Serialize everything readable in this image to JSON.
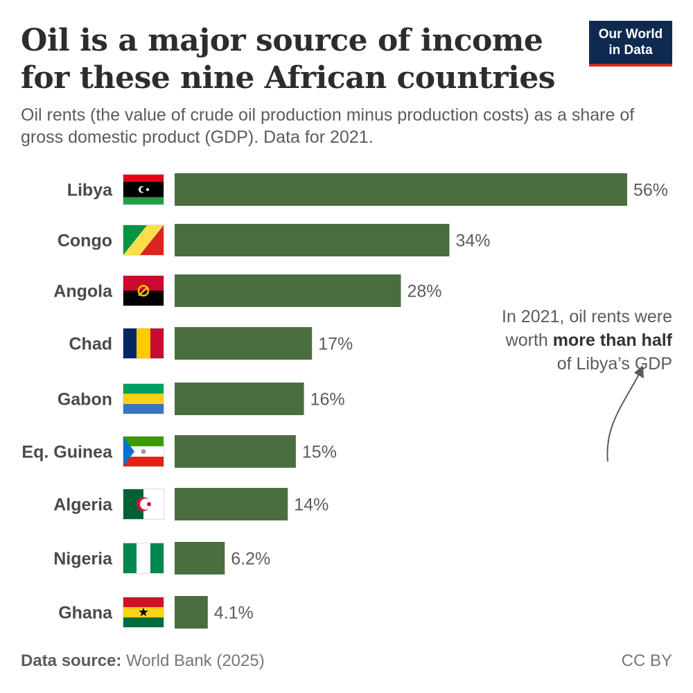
{
  "header": {
    "title": "Oil is a major source of income for these nine African countries",
    "subtitle": "Oil rents (the value of crude oil production minus production costs) as a share of gross domestic product (GDP). Data for 2021.",
    "logo_line1": "Our World",
    "logo_line2": "in Data"
  },
  "annotation": {
    "line1": "In 2021, oil rents were",
    "line2_prefix": "worth ",
    "line2_bold": "more than half",
    "line3": "of Libya’s GDP"
  },
  "footer": {
    "source_label": "Data source:",
    "source_value": "World Bank (2025)",
    "license": "CC BY"
  },
  "colors": {
    "bar": "#4a6e3f",
    "text": "#4a4a4a",
    "logo_bg": "#0f2a50",
    "logo_accent": "#d42b21"
  },
  "chart_data": {
    "type": "bar",
    "orientation": "horizontal",
    "title": "Oil is a major source of income for these nine African countries",
    "xlabel": "",
    "ylabel": "",
    "xlim": [
      0,
      56
    ],
    "unit": "%",
    "categories": [
      "Libya",
      "Congo",
      "Angola",
      "Chad",
      "Gabon",
      "Eq. Guinea",
      "Algeria",
      "Nigeria",
      "Ghana"
    ],
    "values": [
      56,
      34,
      28,
      17,
      16,
      15,
      14,
      6.2,
      4.1
    ],
    "value_labels": [
      "56%",
      "34%",
      "28%",
      "17%",
      "16%",
      "15%",
      "14%",
      "6.2%",
      "4.1%"
    ],
    "flags": [
      "libya-flag",
      "congo-flag",
      "angola-flag",
      "chad-flag",
      "gabon-flag",
      "eq-guinea-flag",
      "algeria-flag",
      "nigeria-flag",
      "ghana-flag"
    ]
  }
}
